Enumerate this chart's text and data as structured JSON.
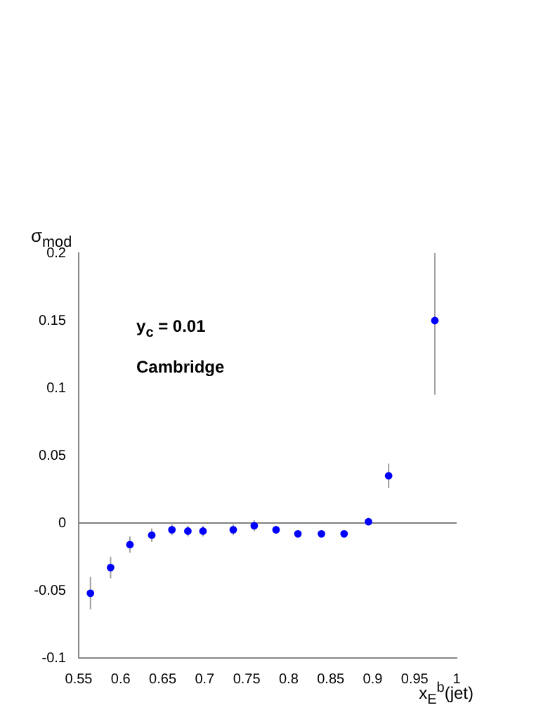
{
  "chart_data": {
    "type": "scatter",
    "xlabel": "x$_{E}$$^{b}$(jet)",
    "ylabel": "σ$_{mod}$",
    "annotations": [
      "y$_{c}$ = 0.01",
      "Cambridge"
    ],
    "x": [
      0.564,
      0.588,
      0.611,
      0.637,
      0.661,
      0.68,
      0.698,
      0.734,
      0.759,
      0.785,
      0.811,
      0.839,
      0.866,
      0.895,
      0.919,
      0.974
    ],
    "series": [
      {
        "color": "#0000ff",
        "values": [
          -0.052,
          -0.033,
          -0.016,
          -0.009,
          -0.005,
          -0.006,
          -0.006,
          -0.005,
          -0.002,
          -0.005,
          -0.008,
          -0.008,
          -0.008,
          0.001,
          0.035,
          0.15
        ],
        "errors": [
          0.012,
          0.008,
          0.006,
          0.005,
          0.004,
          0.004,
          0.004,
          0.004,
          0.004,
          0.003,
          null,
          null,
          null,
          null,
          0.009,
          [
            0.095,
            0.2
          ]
        ]
      }
    ],
    "xlim": [
      0.55,
      1
    ],
    "xticks": [
      {
        "value": 0.55,
        "label": "0.55"
      },
      {
        "value": 0.6,
        "label": "0.6"
      },
      {
        "value": 0.65,
        "label": "0.65"
      },
      {
        "value": 0.7,
        "label": "0.7"
      },
      {
        "value": 0.75,
        "label": "0.75"
      },
      {
        "value": 0.8,
        "label": "0.8"
      },
      {
        "value": 0.85,
        "label": "0.85"
      },
      {
        "value": 0.9,
        "label": "0.9"
      },
      {
        "value": 0.95,
        "label": "0.95"
      },
      {
        "value": 1,
        "label": "1"
      }
    ],
    "ylim": [
      -0.1,
      0.2
    ],
    "yticks": [
      {
        "value": -0.1,
        "label": "-0.1"
      },
      {
        "value": -0.05,
        "label": "-0.05"
      },
      0,
      {
        "value": 0.05,
        "label": "0.05"
      },
      {
        "value": 0.1,
        "label": "0.1"
      },
      {
        "value": 0.15,
        "label": "0.15"
      },
      {
        "value": 0.2,
        "label": "0.2"
      }
    ],
    "ref_lines": [
      {
        "axis": "y",
        "value": 0,
        "color": "#808080"
      }
    ],
    "marker": "circle",
    "grid": false,
    "legend": false
  }
}
